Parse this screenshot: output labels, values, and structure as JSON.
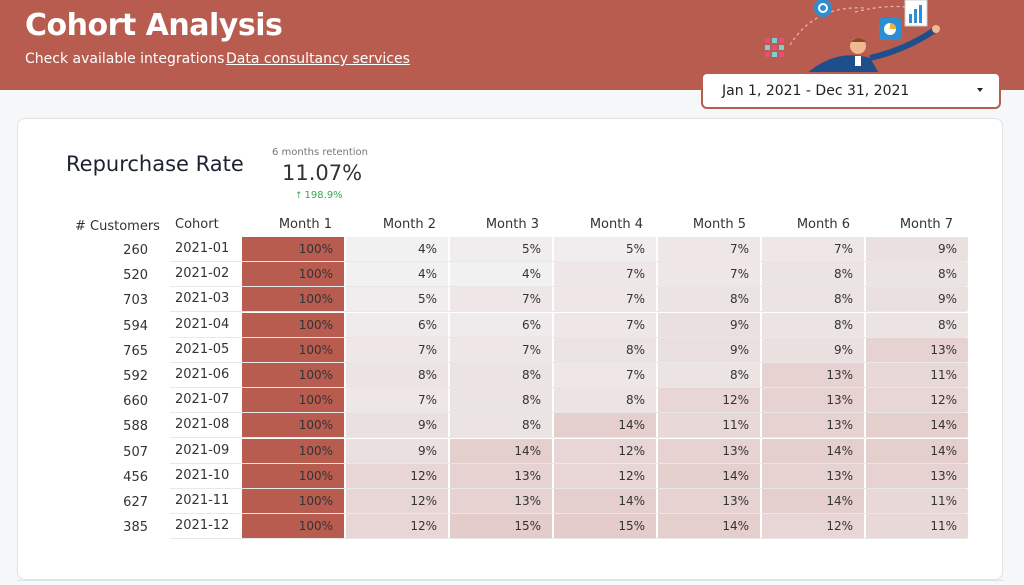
{
  "header": {
    "title": "Cohort Analysis",
    "nav": [
      "Check available integrations",
      "Data consultancy services"
    ],
    "date_range": "Jan 1, 2021 - Dec 31, 2021",
    "bg_color": "#b85c50"
  },
  "card": {
    "title": "Repurchase Rate",
    "kpi": {
      "label": "6 months retention",
      "value": "11.07%",
      "delta": "198.9%",
      "delta_direction": "up"
    }
  },
  "table": {
    "customers_header": "# Customers",
    "cohort_header": "Cohort",
    "months": [
      "Month 1",
      "Month 2",
      "Month 3",
      "Month 4",
      "Month 5",
      "Month 6",
      "Month 7"
    ],
    "rows": [
      {
        "customers": "260",
        "cohort": "2021-01",
        "values": [
          "100%",
          "4%",
          "5%",
          "5%",
          "7%",
          "7%",
          "9%"
        ]
      },
      {
        "customers": "520",
        "cohort": "2021-02",
        "values": [
          "100%",
          "4%",
          "4%",
          "7%",
          "7%",
          "8%",
          "8%"
        ]
      },
      {
        "customers": "703",
        "cohort": "2021-03",
        "values": [
          "100%",
          "5%",
          "7%",
          "7%",
          "8%",
          "8%",
          "9%"
        ]
      },
      {
        "customers": "594",
        "cohort": "2021-04",
        "values": [
          "100%",
          "6%",
          "6%",
          "7%",
          "9%",
          "8%",
          "8%"
        ]
      },
      {
        "customers": "765",
        "cohort": "2021-05",
        "values": [
          "100%",
          "7%",
          "7%",
          "8%",
          "9%",
          "9%",
          "13%"
        ]
      },
      {
        "customers": "592",
        "cohort": "2021-06",
        "values": [
          "100%",
          "8%",
          "8%",
          "7%",
          "8%",
          "13%",
          "11%"
        ]
      },
      {
        "customers": "660",
        "cohort": "2021-07",
        "values": [
          "100%",
          "7%",
          "8%",
          "8%",
          "12%",
          "13%",
          "12%"
        ]
      },
      {
        "customers": "588",
        "cohort": "2021-08",
        "values": [
          "100%",
          "9%",
          "8%",
          "14%",
          "11%",
          "13%",
          "14%"
        ]
      },
      {
        "customers": "507",
        "cohort": "2021-09",
        "values": [
          "100%",
          "9%",
          "14%",
          "12%",
          "13%",
          "14%",
          "14%"
        ]
      },
      {
        "customers": "456",
        "cohort": "2021-10",
        "values": [
          "100%",
          "12%",
          "13%",
          "12%",
          "14%",
          "13%",
          "13%"
        ]
      },
      {
        "customers": "627",
        "cohort": "2021-11",
        "values": [
          "100%",
          "12%",
          "13%",
          "14%",
          "13%",
          "14%",
          "11%"
        ]
      },
      {
        "customers": "385",
        "cohort": "2021-12",
        "values": [
          "100%",
          "12%",
          "15%",
          "15%",
          "14%",
          "12%",
          "11%"
        ]
      }
    ],
    "heat_color_high": "#b85c50",
    "heat_color_low": "#f4f7f9"
  }
}
